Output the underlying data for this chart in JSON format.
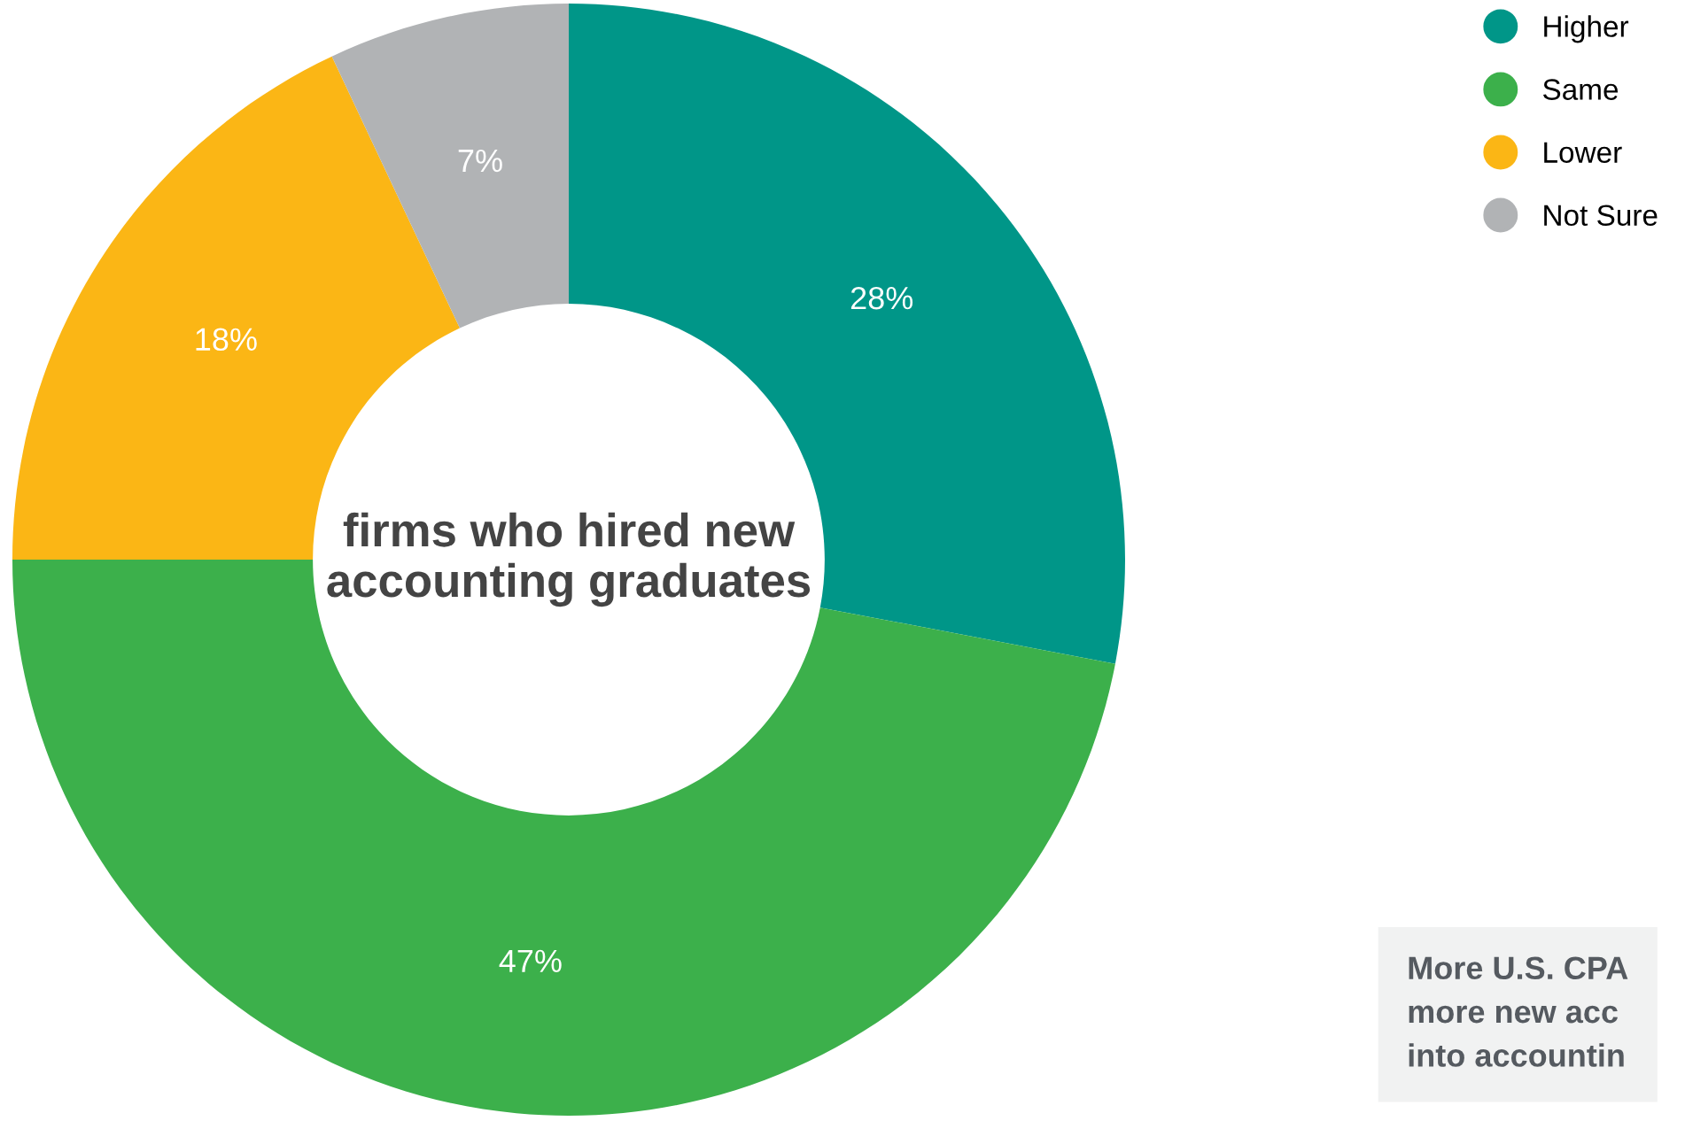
{
  "chart_data": {
    "type": "donut",
    "title": "firms who hired new accounting graduates",
    "categories": [
      "Higher",
      "Same",
      "Lower",
      "Not Sure"
    ],
    "values": [
      28,
      47,
      18,
      7
    ],
    "colors": [
      "#009688",
      "#3cb04b",
      "#fbb615",
      "#b1b3b5"
    ],
    "value_labels": [
      "28%",
      "47%",
      "18%",
      "7%"
    ],
    "legend": "top right",
    "annotations": [
      "More U.S. CPA\nmore new acc\ninto accountin"
    ]
  }
}
